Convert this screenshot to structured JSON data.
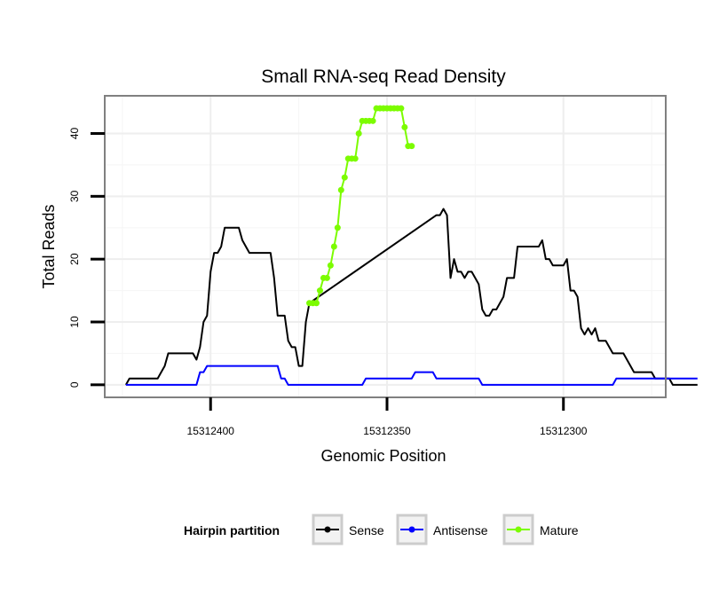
{
  "chart_data": {
    "type": "line",
    "title": "Small RNA-seq Read Density",
    "xlabel": "Genomic Position",
    "ylabel": "Total Reads",
    "x_reversed": true,
    "xlim": [
      15312430,
      15312271
    ],
    "ylim": [
      -2,
      46
    ],
    "x_ticks": [
      15312400,
      15312350,
      15312300
    ],
    "x_tick_labels": [
      "15312400",
      "15312350",
      "15312300"
    ],
    "y_ticks": [
      0,
      10,
      20,
      30,
      40
    ],
    "y_tick_labels": [
      "0",
      "10",
      "20",
      "30",
      "40"
    ],
    "grid": true,
    "legend": {
      "title": "Hairpin partition",
      "position": "bottom",
      "entries": [
        "Sense",
        "Antisense",
        "Mature"
      ]
    },
    "series": [
      {
        "name": "Sense",
        "color": "#000000",
        "points": [
          [
            15312424,
            0
          ],
          [
            15312423,
            1
          ],
          [
            15312415,
            1
          ],
          [
            15312414,
            2
          ],
          [
            15312413,
            3
          ],
          [
            15312412,
            5
          ],
          [
            15312405,
            5
          ],
          [
            15312404,
            4
          ],
          [
            15312403,
            6
          ],
          [
            15312402,
            10
          ],
          [
            15312401,
            11
          ],
          [
            15312400,
            18
          ],
          [
            15312399,
            21
          ],
          [
            15312398,
            21
          ],
          [
            15312397,
            22
          ],
          [
            15312396,
            25
          ],
          [
            15312392,
            25
          ],
          [
            15312391,
            23
          ],
          [
            15312389,
            21
          ],
          [
            15312383,
            21
          ],
          [
            15312382,
            17
          ],
          [
            15312381,
            11
          ],
          [
            15312379,
            11
          ],
          [
            15312378,
            7
          ],
          [
            15312377,
            6
          ],
          [
            15312376,
            6
          ],
          [
            15312375,
            3
          ],
          [
            15312374,
            3
          ],
          [
            15312373,
            10
          ],
          [
            15312372,
            13
          ],
          [
            15312336,
            27
          ],
          [
            15312335,
            27
          ],
          [
            15312334,
            28
          ],
          [
            15312333,
            27
          ],
          [
            15312332,
            17
          ],
          [
            15312331,
            20
          ],
          [
            15312330,
            18
          ],
          [
            15312329,
            18
          ],
          [
            15312328,
            17
          ],
          [
            15312327,
            18
          ],
          [
            15312326,
            18
          ],
          [
            15312325,
            17
          ],
          [
            15312324,
            16
          ],
          [
            15312323,
            12
          ],
          [
            15312322,
            11
          ],
          [
            15312321,
            11
          ],
          [
            15312320,
            12
          ],
          [
            15312319,
            12
          ],
          [
            15312318,
            13
          ],
          [
            15312317,
            14
          ],
          [
            15312316,
            17
          ],
          [
            15312314,
            17
          ],
          [
            15312313,
            22
          ],
          [
            15312307,
            22
          ],
          [
            15312306,
            23
          ],
          [
            15312305,
            20
          ],
          [
            15312304,
            20
          ],
          [
            15312303,
            19
          ],
          [
            15312300,
            19
          ],
          [
            15312299,
            20
          ],
          [
            15312298,
            15
          ],
          [
            15312297,
            15
          ],
          [
            15312296,
            14
          ],
          [
            15312295,
            9
          ],
          [
            15312294,
            8
          ],
          [
            15312293,
            9
          ],
          [
            15312292,
            8
          ],
          [
            15312291,
            9
          ],
          [
            15312290,
            7
          ],
          [
            15312288,
            7
          ],
          [
            15312286,
            5
          ],
          [
            15312283,
            5
          ],
          [
            15312280,
            2
          ],
          [
            15312275,
            2
          ],
          [
            15312274,
            1
          ],
          [
            15312270,
            1
          ],
          [
            15312269,
            0
          ],
          [
            15312262,
            0
          ]
        ]
      },
      {
        "name": "Antisense",
        "color": "#0000ff",
        "points": [
          [
            15312424,
            0
          ],
          [
            15312404,
            0
          ],
          [
            15312403,
            2
          ],
          [
            15312402,
            2
          ],
          [
            15312401,
            3
          ],
          [
            15312381,
            3
          ],
          [
            15312380,
            1
          ],
          [
            15312379,
            1
          ],
          [
            15312378,
            0
          ],
          [
            15312357,
            0
          ],
          [
            15312356,
            1
          ],
          [
            15312343,
            1
          ],
          [
            15312342,
            2
          ],
          [
            15312337,
            2
          ],
          [
            15312336,
            1
          ],
          [
            15312324,
            1
          ],
          [
            15312323,
            0
          ],
          [
            15312286,
            0
          ],
          [
            15312285,
            1
          ],
          [
            15312262,
            1
          ]
        ]
      },
      {
        "name": "Mature",
        "color": "#7cfc00",
        "points": [
          [
            15312372,
            13
          ],
          [
            15312371,
            13
          ],
          [
            15312370,
            13
          ],
          [
            15312369,
            15
          ],
          [
            15312368,
            17
          ],
          [
            15312367,
            17
          ],
          [
            15312366,
            19
          ],
          [
            15312365,
            22
          ],
          [
            15312364,
            25
          ],
          [
            15312363,
            31
          ],
          [
            15312362,
            33
          ],
          [
            15312361,
            36
          ],
          [
            15312360,
            36
          ],
          [
            15312359,
            36
          ],
          [
            15312358,
            40
          ],
          [
            15312357,
            42
          ],
          [
            15312356,
            42
          ],
          [
            15312355,
            42
          ],
          [
            15312354,
            42
          ],
          [
            15312353,
            44
          ],
          [
            15312352,
            44
          ],
          [
            15312351,
            44
          ],
          [
            15312350,
            44
          ],
          [
            15312349,
            44
          ],
          [
            15312348,
            44
          ],
          [
            15312347,
            44
          ],
          [
            15312346,
            44
          ],
          [
            15312345,
            41
          ],
          [
            15312344,
            38
          ],
          [
            15312343,
            38
          ]
        ]
      }
    ]
  }
}
